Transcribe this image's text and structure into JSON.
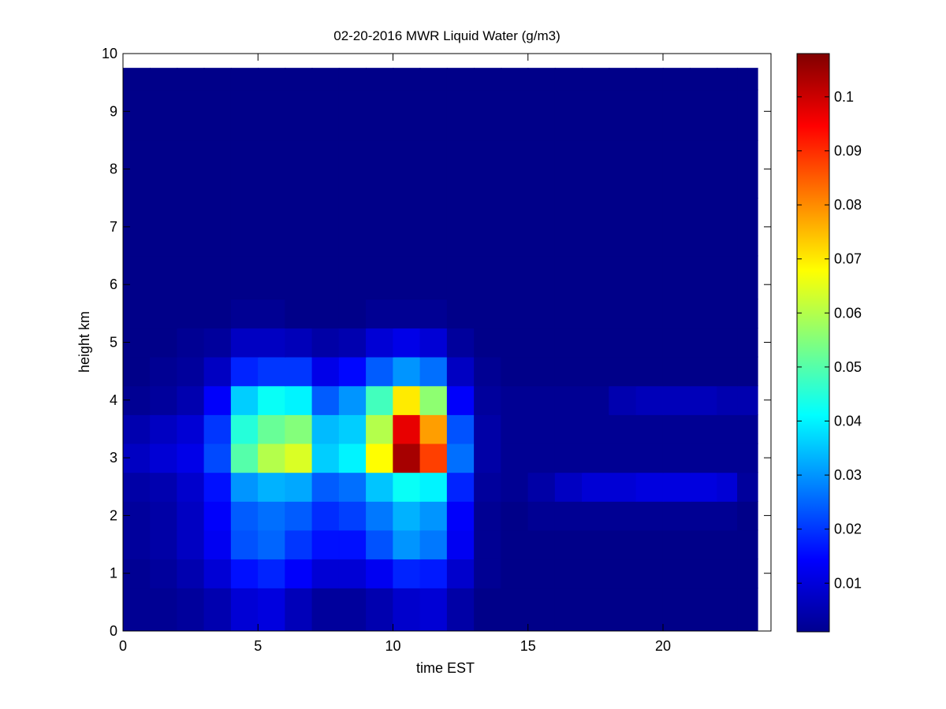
{
  "chart_data": {
    "type": "heatmap",
    "title": "02-20-2016 MWR Liquid Water (g/m3)",
    "xlabel": "time EST",
    "ylabel": "height km",
    "xlim": [
      0,
      24
    ],
    "ylim": [
      0,
      10
    ],
    "xticks": [
      0,
      5,
      10,
      15,
      20
    ],
    "yticks": [
      0,
      1,
      2,
      3,
      4,
      5,
      6,
      7,
      8,
      9,
      10
    ],
    "data_x_extent": [
      0,
      23.5
    ],
    "data_y_extent": [
      0,
      9.75
    ],
    "colorbar": {
      "colormap": "jet",
      "range": [
        0.001,
        0.108
      ],
      "ticks": [
        0.01,
        0.02,
        0.03,
        0.04,
        0.05,
        0.06,
        0.07,
        0.08,
        0.09,
        0.1
      ],
      "tick_labels": [
        "0.01",
        "0.02",
        "0.03",
        "0.04",
        "0.05",
        "0.06",
        "0.07",
        "0.08",
        "0.09",
        "0.1"
      ]
    },
    "x": [
      0.5,
      1.5,
      2.5,
      3.5,
      4.5,
      5.5,
      6.5,
      7.5,
      8.5,
      9.5,
      10.5,
      11.5,
      12.5,
      13.5,
      14.5,
      15.5,
      16.5,
      17.5,
      18.5,
      19.5,
      20.5,
      21.5,
      22.5,
      23.0
    ],
    "y": [
      0.5,
      1.0,
      1.5,
      2.0,
      2.5,
      3.0,
      3.5,
      4.0,
      4.5,
      5.0,
      5.5,
      6.0,
      7.0,
      8.0,
      9.0,
      9.75
    ],
    "z": [
      [
        0.003,
        0.003,
        0.004,
        0.006,
        0.01,
        0.011,
        0.007,
        0.004,
        0.004,
        0.006,
        0.009,
        0.01,
        0.005,
        0.002,
        0.002,
        0.002,
        0.002,
        0.002,
        0.002,
        0.002,
        0.002,
        0.002,
        0.002,
        0.002
      ],
      [
        0.003,
        0.004,
        0.006,
        0.01,
        0.016,
        0.018,
        0.014,
        0.01,
        0.01,
        0.013,
        0.018,
        0.017,
        0.009,
        0.003,
        0.002,
        0.002,
        0.002,
        0.002,
        0.002,
        0.002,
        0.002,
        0.002,
        0.002,
        0.002
      ],
      [
        0.004,
        0.005,
        0.008,
        0.013,
        0.023,
        0.025,
        0.02,
        0.016,
        0.016,
        0.023,
        0.03,
        0.027,
        0.013,
        0.003,
        0.002,
        0.002,
        0.002,
        0.002,
        0.002,
        0.002,
        0.002,
        0.002,
        0.002,
        0.002
      ],
      [
        0.004,
        0.005,
        0.008,
        0.014,
        0.024,
        0.026,
        0.024,
        0.019,
        0.021,
        0.027,
        0.033,
        0.03,
        0.014,
        0.003,
        0.002,
        0.003,
        0.003,
        0.003,
        0.003,
        0.003,
        0.003,
        0.003,
        0.003,
        0.002
      ],
      [
        0.005,
        0.006,
        0.009,
        0.016,
        0.03,
        0.033,
        0.032,
        0.024,
        0.026,
        0.035,
        0.042,
        0.04,
        0.018,
        0.004,
        0.003,
        0.005,
        0.008,
        0.01,
        0.01,
        0.011,
        0.011,
        0.011,
        0.01,
        0.004
      ],
      [
        0.008,
        0.01,
        0.012,
        0.022,
        0.05,
        0.06,
        0.064,
        0.036,
        0.04,
        0.068,
        0.104,
        0.088,
        0.026,
        0.005,
        0.003,
        0.003,
        0.003,
        0.003,
        0.003,
        0.003,
        0.003,
        0.003,
        0.003,
        0.003
      ],
      [
        0.006,
        0.008,
        0.01,
        0.02,
        0.045,
        0.052,
        0.055,
        0.034,
        0.036,
        0.06,
        0.097,
        0.078,
        0.023,
        0.005,
        0.003,
        0.003,
        0.003,
        0.003,
        0.003,
        0.003,
        0.003,
        0.003,
        0.003,
        0.003
      ],
      [
        0.003,
        0.004,
        0.006,
        0.014,
        0.036,
        0.042,
        0.04,
        0.024,
        0.03,
        0.048,
        0.07,
        0.056,
        0.014,
        0.004,
        0.003,
        0.003,
        0.003,
        0.003,
        0.006,
        0.007,
        0.007,
        0.007,
        0.006,
        0.006
      ],
      [
        0.002,
        0.003,
        0.004,
        0.008,
        0.018,
        0.02,
        0.02,
        0.012,
        0.015,
        0.024,
        0.03,
        0.026,
        0.008,
        0.003,
        0.002,
        0.002,
        0.002,
        0.002,
        0.002,
        0.002,
        0.002,
        0.002,
        0.002,
        0.002
      ],
      [
        0.002,
        0.002,
        0.003,
        0.004,
        0.008,
        0.008,
        0.007,
        0.005,
        0.006,
        0.01,
        0.012,
        0.01,
        0.004,
        0.002,
        0.002,
        0.002,
        0.002,
        0.002,
        0.002,
        0.002,
        0.002,
        0.002,
        0.002,
        0.002
      ],
      [
        0.002,
        0.002,
        0.002,
        0.002,
        0.003,
        0.003,
        0.002,
        0.002,
        0.002,
        0.003,
        0.003,
        0.003,
        0.002,
        0.002,
        0.002,
        0.002,
        0.002,
        0.002,
        0.002,
        0.002,
        0.002,
        0.002,
        0.002,
        0.002
      ],
      [
        0.002,
        0.002,
        0.002,
        0.002,
        0.002,
        0.002,
        0.002,
        0.002,
        0.002,
        0.002,
        0.002,
        0.002,
        0.002,
        0.002,
        0.002,
        0.002,
        0.002,
        0.002,
        0.002,
        0.002,
        0.002,
        0.002,
        0.002,
        0.002
      ],
      [
        0.002,
        0.002,
        0.002,
        0.002,
        0.002,
        0.002,
        0.002,
        0.002,
        0.002,
        0.002,
        0.002,
        0.002,
        0.002,
        0.002,
        0.002,
        0.002,
        0.002,
        0.002,
        0.002,
        0.002,
        0.002,
        0.002,
        0.002,
        0.002
      ],
      [
        0.002,
        0.002,
        0.002,
        0.002,
        0.002,
        0.002,
        0.002,
        0.002,
        0.002,
        0.002,
        0.002,
        0.002,
        0.002,
        0.002,
        0.002,
        0.002,
        0.002,
        0.002,
        0.002,
        0.002,
        0.002,
        0.002,
        0.002,
        0.002
      ],
      [
        0.002,
        0.002,
        0.002,
        0.002,
        0.002,
        0.002,
        0.002,
        0.002,
        0.002,
        0.002,
        0.002,
        0.002,
        0.002,
        0.002,
        0.002,
        0.002,
        0.002,
        0.002,
        0.002,
        0.002,
        0.002,
        0.002,
        0.002,
        0.002
      ],
      [
        0.002,
        0.002,
        0.002,
        0.002,
        0.002,
        0.002,
        0.002,
        0.002,
        0.002,
        0.002,
        0.002,
        0.002,
        0.002,
        0.002,
        0.002,
        0.002,
        0.002,
        0.002,
        0.002,
        0.002,
        0.002,
        0.002,
        0.002,
        0.002
      ]
    ]
  }
}
